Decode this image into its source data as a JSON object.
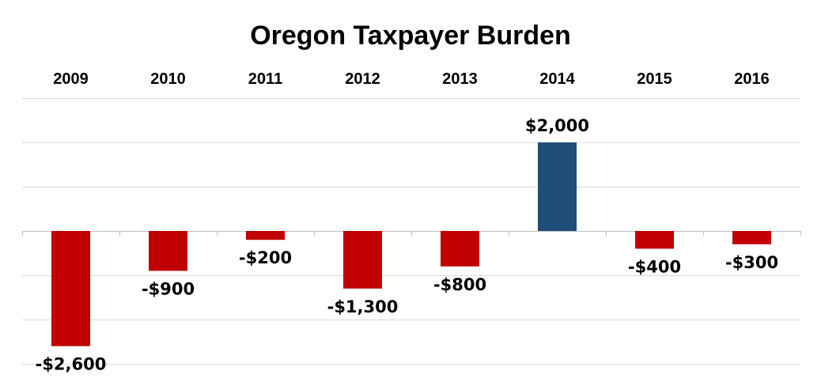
{
  "chart_data": {
    "type": "bar",
    "title": "Oregon Taxpayer Burden",
    "xlabel": "",
    "ylabel": "",
    "categories": [
      "2009",
      "2010",
      "2011",
      "2012",
      "2013",
      "2014",
      "2015",
      "2016"
    ],
    "values": [
      -2600,
      -900,
      -200,
      -1300,
      -800,
      2000,
      -400,
      -300
    ],
    "data_labels": [
      "-$2,600",
      "-$900",
      "-$200",
      "-$1,300",
      "-$800",
      "$2,000",
      "-$400",
      "-$300"
    ],
    "ylim": [
      -3000,
      3000
    ],
    "grid": true,
    "legend": "none",
    "colors": {
      "positive": "#1f4e79",
      "negative": "#c00000"
    }
  }
}
